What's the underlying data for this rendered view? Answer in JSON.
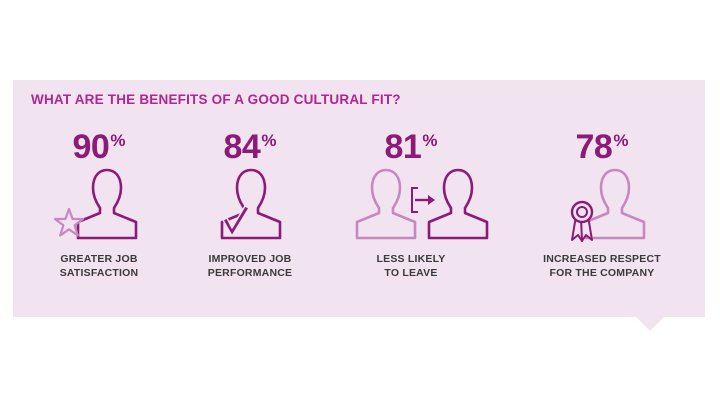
{
  "heading": "WHAT ARE THE BENEFITS OF A GOOD CULTURAL FIT?",
  "colors": {
    "panel": "#f1e4f0",
    "heading": "#b1258f",
    "dark_purple": "#8c1a77",
    "light_purple": "#c788bf",
    "label": "#3a3a3a"
  },
  "stats": [
    {
      "value": "90",
      "unit": "%",
      "line1": "GREATER JOB",
      "line2": "SATISFACTION",
      "icon": "person-star-icon"
    },
    {
      "value": "84",
      "unit": "%",
      "line1": "IMPROVED JOB",
      "line2": "PERFORMANCE",
      "icon": "person-checkmark-icon"
    },
    {
      "value": "81",
      "unit": "%",
      "line1": "LESS LIKELY",
      "line2": "TO LEAVE",
      "icon": "person-exit-icon"
    },
    {
      "value": "78",
      "unit": "%",
      "line1": "INCREASED RESPECT",
      "line2": "FOR THE COMPANY",
      "icon": "person-award-icon"
    }
  ]
}
